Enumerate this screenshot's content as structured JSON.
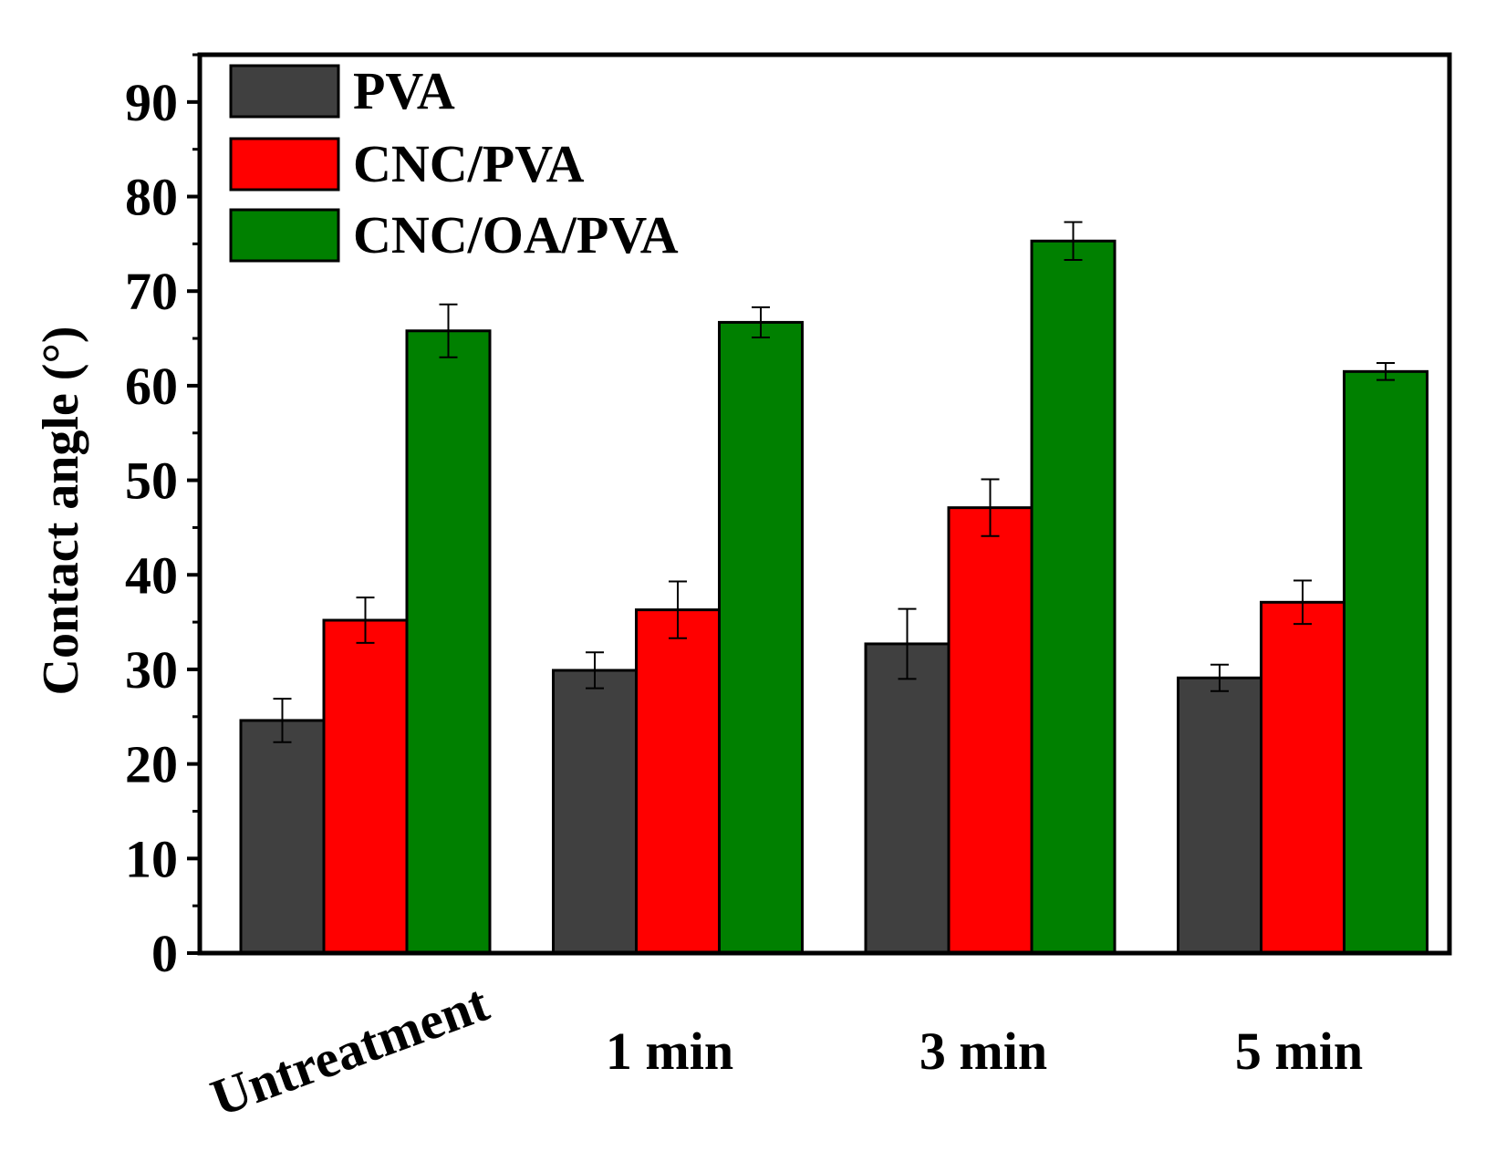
{
  "chart_data": {
    "type": "bar",
    "title": "",
    "xlabel": "",
    "ylabel": "Contact angle (°)",
    "ylim": [
      0,
      95
    ],
    "yticks": [
      0,
      10,
      20,
      30,
      40,
      50,
      60,
      70,
      80,
      90
    ],
    "yticks_labels": [
      "0",
      "10",
      "20",
      "30",
      "40",
      "50",
      "60",
      "70",
      "80",
      "90"
    ],
    "minor_ticks": true,
    "grid": false,
    "legend_position": "top-left",
    "categories": [
      "Untreatment",
      "1 min",
      "3 min",
      "5 min"
    ],
    "series": [
      {
        "name": "PVA",
        "color": "#404040",
        "values": [
          24.6,
          29.9,
          32.7,
          29.1
        ],
        "errors": [
          2.3,
          1.9,
          3.7,
          1.4
        ]
      },
      {
        "name": "CNC/PVA",
        "color": "#ff0000",
        "values": [
          35.2,
          36.3,
          47.1,
          37.1
        ],
        "errors": [
          2.4,
          3.0,
          3.0,
          2.3
        ]
      },
      {
        "name": "CNC/OA/PVA",
        "color": "#008000",
        "values": [
          65.8,
          66.7,
          75.3,
          61.5
        ],
        "errors": [
          2.8,
          1.6,
          2.0,
          0.9
        ]
      }
    ]
  }
}
